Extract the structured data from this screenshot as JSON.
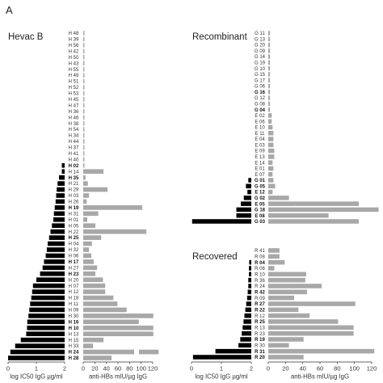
{
  "figure": {
    "panel_label": "A"
  },
  "colors": {
    "log_ic50_bar": "#000000",
    "anti_hbs_bar": "#a8a8a8",
    "label_text": "#333333"
  },
  "chart_data": [
    {
      "type": "bar",
      "orientation": "horizontal",
      "title": "Hevac B",
      "grid": false,
      "x_axes": {
        "left": {
          "label": "log IC50 IgG µg/ml",
          "range": [
            0,
            2
          ],
          "ticks": [
            0,
            1,
            2
          ],
          "baseline": 2
        },
        "right": {
          "label": "anti-HBs mIU/µg IgG",
          "range": [
            0,
            120
          ],
          "ticks": [
            0,
            20,
            40,
            60,
            80,
            100,
            120
          ],
          "baseline": 0
        }
      },
      "rows": [
        {
          "label": "H 48",
          "bold": false,
          "log_ic50": 2,
          "anti_hbs": 2
        },
        {
          "label": "H 39",
          "bold": false,
          "log_ic50": 2,
          "anti_hbs": 2
        },
        {
          "label": "H 56",
          "bold": false,
          "log_ic50": 2,
          "anti_hbs": 2
        },
        {
          "label": "H 42",
          "bold": false,
          "log_ic50": 2,
          "anti_hbs": 2
        },
        {
          "label": "H 50",
          "bold": false,
          "log_ic50": 2,
          "anti_hbs": 2
        },
        {
          "label": "H 43",
          "bold": false,
          "log_ic50": 2,
          "anti_hbs": 2
        },
        {
          "label": "H 55",
          "bold": false,
          "log_ic50": 2,
          "anti_hbs": 2
        },
        {
          "label": "H 49",
          "bold": false,
          "log_ic50": 2,
          "anti_hbs": 2
        },
        {
          "label": "H 51",
          "bold": false,
          "log_ic50": 2,
          "anti_hbs": 2
        },
        {
          "label": "H 52",
          "bold": false,
          "log_ic50": 2,
          "anti_hbs": 2
        },
        {
          "label": "H 53",
          "bold": false,
          "log_ic50": 2,
          "anti_hbs": 2
        },
        {
          "label": "H 45",
          "bold": false,
          "log_ic50": 2,
          "anti_hbs": 2
        },
        {
          "label": "H 47",
          "bold": false,
          "log_ic50": 2,
          "anti_hbs": 2
        },
        {
          "label": "H 36",
          "bold": false,
          "log_ic50": 2,
          "anti_hbs": 2
        },
        {
          "label": "H 46",
          "bold": false,
          "log_ic50": 2,
          "anti_hbs": 2
        },
        {
          "label": "H 38",
          "bold": false,
          "log_ic50": 2,
          "anti_hbs": 2
        },
        {
          "label": "H 54",
          "bold": false,
          "log_ic50": 2,
          "anti_hbs": 2
        },
        {
          "label": "H 34",
          "bold": false,
          "log_ic50": 2,
          "anti_hbs": 2
        },
        {
          "label": "H 44",
          "bold": false,
          "log_ic50": 2,
          "anti_hbs": 2
        },
        {
          "label": "H 37",
          "bold": false,
          "log_ic50": 2,
          "anti_hbs": 2
        },
        {
          "label": "H 41",
          "bold": false,
          "log_ic50": 2,
          "anti_hbs": 2
        },
        {
          "label": "H 40",
          "bold": false,
          "log_ic50": 2,
          "anti_hbs": 2
        },
        {
          "label": "H 02",
          "bold": true,
          "log_ic50": 1.9,
          "anti_hbs": 2
        },
        {
          "label": "H 14",
          "bold": false,
          "log_ic50": 1.9,
          "anti_hbs": 35
        },
        {
          "label": "H 35",
          "bold": true,
          "log_ic50": 1.8,
          "anti_hbs": 4
        },
        {
          "label": "H 21",
          "bold": false,
          "log_ic50": 1.75,
          "anti_hbs": 8
        },
        {
          "label": "H 29",
          "bold": false,
          "log_ic50": 1.72,
          "anti_hbs": 42
        },
        {
          "label": "H 03",
          "bold": false,
          "log_ic50": 1.7,
          "anti_hbs": 10
        },
        {
          "label": "H 26",
          "bold": false,
          "log_ic50": 1.68,
          "anti_hbs": 6
        },
        {
          "label": "H 19",
          "bold": true,
          "log_ic50": 1.65,
          "anti_hbs": 102
        },
        {
          "label": "H 31",
          "bold": false,
          "log_ic50": 1.62,
          "anti_hbs": 26
        },
        {
          "label": "H 01",
          "bold": false,
          "log_ic50": 1.6,
          "anti_hbs": 7
        },
        {
          "label": "H 05",
          "bold": false,
          "log_ic50": 1.55,
          "anti_hbs": 21
        },
        {
          "label": "H 22",
          "bold": false,
          "log_ic50": 1.5,
          "anti_hbs": 109
        },
        {
          "label": "H 25",
          "bold": true,
          "log_ic50": 1.45,
          "anti_hbs": 31
        },
        {
          "label": "H 04",
          "bold": false,
          "log_ic50": 1.4,
          "anti_hbs": 15
        },
        {
          "label": "H 32",
          "bold": false,
          "log_ic50": 1.37,
          "anti_hbs": 10
        },
        {
          "label": "H 06",
          "bold": false,
          "log_ic50": 1.33,
          "anti_hbs": 14
        },
        {
          "label": "H 17",
          "bold": true,
          "log_ic50": 1.27,
          "anti_hbs": 18
        },
        {
          "label": "H 27",
          "bold": false,
          "log_ic50": 1.22,
          "anti_hbs": 24
        },
        {
          "label": "H 23",
          "bold": true,
          "log_ic50": 1.13,
          "anti_hbs": 21
        },
        {
          "label": "H 20",
          "bold": false,
          "log_ic50": 1.0,
          "anti_hbs": 34
        },
        {
          "label": "H 07",
          "bold": false,
          "log_ic50": 0.88,
          "anti_hbs": 38
        },
        {
          "label": "H 12",
          "bold": false,
          "log_ic50": 0.85,
          "anti_hbs": 38
        },
        {
          "label": "H 18",
          "bold": false,
          "log_ic50": 0.82,
          "anti_hbs": 52
        },
        {
          "label": "H 11",
          "bold": false,
          "log_ic50": 0.78,
          "anti_hbs": 59
        },
        {
          "label": "H 09",
          "bold": false,
          "log_ic50": 0.75,
          "anti_hbs": 75
        },
        {
          "label": "H 30",
          "bold": false,
          "log_ic50": 0.72,
          "anti_hbs": 121
        },
        {
          "label": "H 16",
          "bold": true,
          "log_ic50": 0.68,
          "anti_hbs": 96
        },
        {
          "label": "H 10",
          "bold": true,
          "log_ic50": 0.67,
          "anti_hbs": 121
        },
        {
          "label": "H 13",
          "bold": false,
          "log_ic50": 0.64,
          "anti_hbs": 121
        },
        {
          "label": "H 15",
          "bold": false,
          "log_ic50": 0.45,
          "anti_hbs": 35
        },
        {
          "label": "H 33",
          "bold": false,
          "log_ic50": 0.25,
          "anti_hbs": 17
        },
        {
          "label": "H 24",
          "bold": true,
          "log_ic50": 0.08,
          "anti_hbs": 130,
          "broken": true
        },
        {
          "label": "H 28",
          "bold": true,
          "log_ic50": 0.0,
          "anti_hbs": 49
        }
      ]
    },
    {
      "type": "bar",
      "orientation": "horizontal",
      "title": "Recombinant",
      "grid": false,
      "rows": [
        {
          "label": "G 11",
          "bold": false,
          "log_ic50": 2,
          "anti_hbs": 2
        },
        {
          "label": "G 13",
          "bold": false,
          "log_ic50": 2,
          "anti_hbs": 2
        },
        {
          "label": "G 20",
          "bold": false,
          "log_ic50": 2,
          "anti_hbs": 2
        },
        {
          "label": "G 09",
          "bold": false,
          "log_ic50": 2,
          "anti_hbs": 2
        },
        {
          "label": "G 14",
          "bold": false,
          "log_ic50": 2,
          "anti_hbs": 2
        },
        {
          "label": "G 19",
          "bold": false,
          "log_ic50": 2,
          "anti_hbs": 2
        },
        {
          "label": "G 10",
          "bold": false,
          "log_ic50": 2,
          "anti_hbs": 2
        },
        {
          "label": "G 15",
          "bold": false,
          "log_ic50": 2,
          "anti_hbs": 2
        },
        {
          "label": "G 17",
          "bold": false,
          "log_ic50": 2,
          "anti_hbs": 2
        },
        {
          "label": "G 06",
          "bold": false,
          "log_ic50": 2,
          "anti_hbs": 2
        },
        {
          "label": "G 16",
          "bold": true,
          "log_ic50": 2,
          "anti_hbs": 2
        },
        {
          "label": "G 12",
          "bold": false,
          "log_ic50": 2,
          "anti_hbs": 2
        },
        {
          "label": "G 08",
          "bold": false,
          "log_ic50": 2,
          "anti_hbs": 2
        },
        {
          "label": "G 04",
          "bold": true,
          "log_ic50": 2,
          "anti_hbs": 2
        },
        {
          "label": "E 02",
          "bold": false,
          "log_ic50": 2,
          "anti_hbs": 4
        },
        {
          "label": "E 06",
          "bold": false,
          "log_ic50": 2,
          "anti_hbs": 4
        },
        {
          "label": "E 10",
          "bold": false,
          "log_ic50": 2,
          "anti_hbs": 5
        },
        {
          "label": "E 11",
          "bold": false,
          "log_ic50": 2,
          "anti_hbs": 6
        },
        {
          "label": "E 04",
          "bold": false,
          "log_ic50": 2,
          "anti_hbs": 6
        },
        {
          "label": "E 03",
          "bold": false,
          "log_ic50": 2,
          "anti_hbs": 6
        },
        {
          "label": "E 09",
          "bold": false,
          "log_ic50": 2,
          "anti_hbs": 7
        },
        {
          "label": "E 13",
          "bold": false,
          "log_ic50": 2,
          "anti_hbs": 7
        },
        {
          "label": "E 14",
          "bold": false,
          "log_ic50": 2,
          "anti_hbs": 5
        },
        {
          "label": "E 01",
          "bold": false,
          "log_ic50": 2,
          "anti_hbs": 6
        },
        {
          "label": "E 07",
          "bold": false,
          "log_ic50": 2,
          "anti_hbs": 5
        },
        {
          "label": "G 01",
          "bold": true,
          "log_ic50": 1.9,
          "anti_hbs": 6
        },
        {
          "label": "G 05",
          "bold": true,
          "log_ic50": 1.82,
          "anti_hbs": 8
        },
        {
          "label": "E 12",
          "bold": true,
          "log_ic50": 1.87,
          "anti_hbs": 5
        },
        {
          "label": "G 02",
          "bold": true,
          "log_ic50": 1.75,
          "anti_hbs": 24
        },
        {
          "label": "E 05",
          "bold": true,
          "log_ic50": 1.65,
          "anti_hbs": 105
        },
        {
          "label": "G 18",
          "bold": true,
          "log_ic50": 1.5,
          "anti_hbs": 128
        },
        {
          "label": "E 08",
          "bold": true,
          "log_ic50": 1.5,
          "anti_hbs": 70
        },
        {
          "label": "G 03",
          "bold": true,
          "log_ic50": 0.02,
          "anti_hbs": 105
        }
      ]
    },
    {
      "type": "bar",
      "orientation": "horizontal",
      "title": "Recovered",
      "grid": false,
      "x_axes": {
        "left": {
          "label": "log IC50 IgG µg/ml",
          "range": [
            0,
            2
          ],
          "ticks": [
            0,
            1,
            2
          ],
          "baseline": 2
        },
        "right": {
          "label": "anti-HBs mIU/µg IgG",
          "range": [
            0,
            120
          ],
          "ticks": [
            0,
            20,
            40,
            60,
            80,
            100,
            120
          ],
          "baseline": 0
        }
      },
      "rows": [
        {
          "label": "R 41",
          "bold": false,
          "log_ic50": 2,
          "anti_hbs": 13
        },
        {
          "label": "R 08",
          "bold": false,
          "log_ic50": 2,
          "anti_hbs": 13
        },
        {
          "label": "R 04",
          "bold": true,
          "log_ic50": 1.93,
          "anti_hbs": 19
        },
        {
          "label": "R 06",
          "bold": false,
          "log_ic50": 1.92,
          "anti_hbs": 7
        },
        {
          "label": "R 10",
          "bold": false,
          "log_ic50": 1.92,
          "anti_hbs": 44
        },
        {
          "label": "R 36",
          "bold": false,
          "log_ic50": 1.9,
          "anti_hbs": 43
        },
        {
          "label": "R 24",
          "bold": false,
          "log_ic50": 1.9,
          "anti_hbs": 62
        },
        {
          "label": "R 42",
          "bold": true,
          "log_ic50": 1.88,
          "anti_hbs": 45
        },
        {
          "label": "R 09",
          "bold": false,
          "log_ic50": 1.86,
          "anti_hbs": 30
        },
        {
          "label": "R 27",
          "bold": true,
          "log_ic50": 1.83,
          "anti_hbs": 101
        },
        {
          "label": "R 22",
          "bold": true,
          "log_ic50": 1.8,
          "anti_hbs": 35
        },
        {
          "label": "R 12",
          "bold": false,
          "log_ic50": 1.77,
          "anti_hbs": 48
        },
        {
          "label": "R 25",
          "bold": true,
          "log_ic50": 1.74,
          "anti_hbs": 81
        },
        {
          "label": "R 13",
          "bold": false,
          "log_ic50": 1.71,
          "anti_hbs": 99
        },
        {
          "label": "R 23",
          "bold": false,
          "log_ic50": 1.68,
          "anti_hbs": 99
        },
        {
          "label": "R 19",
          "bold": true,
          "log_ic50": 1.63,
          "anti_hbs": 41
        },
        {
          "label": "R 30",
          "bold": false,
          "log_ic50": 1.57,
          "anti_hbs": 24
        },
        {
          "label": "R 31",
          "bold": true,
          "log_ic50": 0.8,
          "anti_hbs": 123
        },
        {
          "label": "R 20",
          "bold": true,
          "log_ic50": 0.05,
          "anti_hbs": 41
        }
      ]
    }
  ]
}
